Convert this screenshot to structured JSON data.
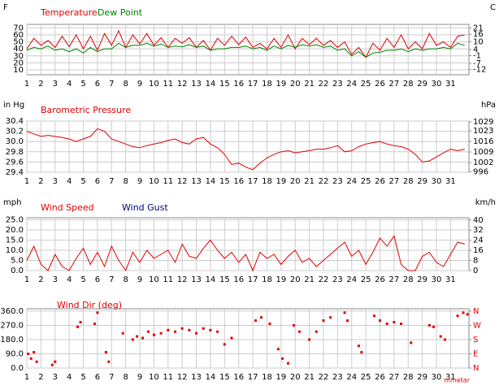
{
  "chart_data": [
    {
      "type": "line",
      "ylabel": "F",
      "y2label": "C",
      "x": [
        1,
        1.5,
        2,
        2.5,
        3,
        3.5,
        4,
        4.5,
        5,
        5.5,
        6,
        6.5,
        7,
        7.5,
        8,
        8.5,
        9,
        9.5,
        10,
        10.5,
        11,
        11.5,
        12,
        12.5,
        13,
        13.5,
        14,
        14.5,
        15,
        15.5,
        16,
        16.5,
        17,
        17.5,
        18,
        18.5,
        19,
        19.5,
        20,
        20.5,
        21,
        21.5,
        22,
        22.5,
        23,
        23.5,
        24,
        24.5,
        25,
        25.5,
        26,
        26.5,
        27,
        27.5,
        28,
        28.5,
        29,
        29.5,
        30,
        30.5,
        31,
        31.5,
        32
      ],
      "xlim": [
        1,
        32.3
      ],
      "xticks": [
        1,
        2,
        3,
        4,
        5,
        6,
        7,
        8,
        9,
        10,
        11,
        12,
        13,
        14,
        15,
        16,
        17,
        18,
        19,
        20,
        21,
        22,
        23,
        24,
        25,
        26,
        27,
        28,
        29,
        30,
        31
      ],
      "ylim": [
        3,
        75
      ],
      "yticks": [
        70,
        60,
        50,
        40,
        30,
        20,
        10
      ],
      "y2lim": [
        -16.1,
        23.9
      ],
      "y2ticks": [
        21,
        16,
        10,
        4,
        -1,
        -7,
        -12
      ],
      "grid": true,
      "series": [
        {
          "name": "Temperature",
          "color": "#e00000",
          "values": [
            40,
            55,
            45,
            52,
            42,
            58,
            43,
            60,
            40,
            58,
            38,
            62,
            45,
            66,
            42,
            60,
            47,
            62,
            45,
            56,
            42,
            55,
            48,
            56,
            42,
            52,
            38,
            55,
            45,
            58,
            46,
            57,
            42,
            48,
            40,
            55,
            42,
            60,
            40,
            55,
            46,
            55,
            45,
            52,
            42,
            50,
            32,
            42,
            28,
            48,
            38,
            55,
            42,
            60,
            40,
            50,
            40,
            62,
            45,
            50,
            42,
            58,
            60
          ]
        },
        {
          "name": "Dew Point",
          "color": "#008000",
          "values": [
            38,
            42,
            40,
            44,
            38,
            40,
            36,
            40,
            34,
            42,
            36,
            40,
            40,
            48,
            42,
            45,
            45,
            48,
            44,
            47,
            42,
            44,
            43,
            46,
            42,
            44,
            38,
            40,
            40,
            42,
            42,
            44,
            40,
            42,
            38,
            44,
            40,
            45,
            42,
            46,
            44,
            46,
            42,
            44,
            38,
            40,
            30,
            36,
            28,
            34,
            35,
            38,
            38,
            40,
            36,
            40,
            38,
            40,
            40,
            42,
            40,
            48,
            45
          ]
        }
      ]
    },
    {
      "type": "line",
      "ylabel": "in Hg",
      "y2label": "hPa",
      "x": [
        1,
        1.5,
        2,
        2.5,
        3,
        3.5,
        4,
        4.5,
        5,
        5.5,
        6,
        6.5,
        7,
        7.5,
        8,
        8.5,
        9,
        9.5,
        10,
        10.5,
        11,
        11.5,
        12,
        12.5,
        13,
        13.5,
        14,
        14.5,
        15,
        15.5,
        16,
        16.5,
        17,
        17.5,
        18,
        18.5,
        19,
        19.5,
        20,
        20.5,
        21,
        21.5,
        22,
        22.5,
        23,
        23.5,
        24,
        24.5,
        25,
        25.5,
        26,
        26.5,
        27,
        27.5,
        28,
        28.5,
        29,
        29.5,
        30,
        30.5,
        31,
        31.5,
        32
      ],
      "xlim": [
        1,
        32.3
      ],
      "xticks": [
        1,
        2,
        3,
        4,
        5,
        6,
        7,
        8,
        9,
        10,
        11,
        12,
        13,
        14,
        15,
        16,
        17,
        18,
        19,
        20,
        21,
        22,
        23,
        24,
        25,
        26,
        27,
        28,
        29,
        30,
        31
      ],
      "ylim": [
        29.4,
        30.4
      ],
      "yticks": [
        30.4,
        30.2,
        {
          "value": 30,
          "label": "30.0"
        },
        29.8,
        29.6,
        29.4
      ],
      "y2lim": [
        995.6,
        1029.5
      ],
      "y2ticks": [
        1029,
        1023,
        1016,
        1009,
        1002,
        996
      ],
      "grid": true,
      "series": [
        {
          "name": "Barometric Pressure",
          "color": "#e00000",
          "values": [
            30.2,
            30.15,
            30.1,
            30.12,
            30.1,
            30.08,
            30.05,
            30.0,
            30.05,
            30.1,
            30.25,
            30.2,
            30.05,
            30.0,
            29.95,
            29.9,
            29.88,
            29.92,
            29.95,
            29.98,
            30.02,
            30.05,
            29.98,
            29.95,
            30.05,
            30.08,
            29.95,
            29.88,
            29.75,
            29.55,
            29.58,
            29.5,
            29.45,
            29.58,
            29.68,
            29.75,
            29.8,
            29.82,
            29.78,
            29.8,
            29.82,
            29.85,
            29.85,
            29.88,
            29.92,
            29.8,
            29.82,
            29.9,
            29.95,
            29.98,
            30.0,
            29.95,
            29.92,
            29.9,
            29.85,
            29.75,
            29.6,
            29.62,
            29.7,
            29.78,
            29.85,
            29.82,
            29.85
          ]
        }
      ]
    },
    {
      "type": "line",
      "ylabel": "mph",
      "y2label": "km/h",
      "x": [
        1,
        1.5,
        2,
        2.5,
        3,
        3.5,
        4,
        4.5,
        5,
        5.5,
        6,
        6.5,
        7,
        7.5,
        8,
        8.5,
        9,
        9.5,
        10,
        10.5,
        11,
        11.5,
        12,
        12.5,
        13,
        13.5,
        14,
        14.5,
        15,
        15.5,
        16,
        16.5,
        17,
        17.5,
        18,
        18.5,
        19,
        19.5,
        20,
        20.5,
        21,
        21.5,
        22,
        22.5,
        23,
        23.5,
        24,
        24.5,
        25,
        25.5,
        26,
        26.5,
        27,
        27.5,
        28,
        28.5,
        29,
        29.5,
        30,
        30.5,
        31,
        31.5,
        32
      ],
      "xlim": [
        1,
        32.3
      ],
      "xticks": [
        1,
        2,
        3,
        4,
        5,
        6,
        7,
        8,
        9,
        10,
        11,
        12,
        13,
        14,
        15,
        16,
        17,
        18,
        19,
        20,
        21,
        22,
        23,
        24,
        25,
        26,
        27,
        28,
        29,
        30,
        31
      ],
      "ylim": [
        0,
        26
      ],
      "yticks": [
        {
          "value": 25,
          "label": "25.0"
        },
        {
          "value": 20,
          "label": "20.0"
        },
        {
          "value": 15,
          "label": "15.0"
        },
        {
          "value": 10,
          "label": "10.0"
        },
        {
          "value": 5,
          "label": "5.0"
        },
        {
          "value": 0,
          "label": "0.0"
        }
      ],
      "y2lim": [
        0,
        41.8
      ],
      "y2ticks": [
        40,
        32,
        24,
        16,
        8,
        0
      ],
      "grid": true,
      "series": [
        {
          "name": "Wind Speed",
          "color": "#e00000",
          "values": [
            5,
            12,
            3,
            0,
            8,
            2,
            0,
            6,
            11,
            3,
            9,
            2,
            12,
            5,
            0,
            9,
            4,
            10,
            6,
            8,
            10,
            4,
            13,
            7,
            6,
            11,
            15,
            10,
            6,
            9,
            4,
            8,
            0,
            9,
            6,
            8,
            3,
            7,
            10,
            4,
            6,
            2,
            5,
            8,
            11,
            14,
            7,
            10,
            3,
            9,
            16,
            12,
            17,
            3,
            0,
            0,
            7,
            9,
            4,
            2,
            8,
            14,
            13
          ]
        },
        {
          "name": "Wind Gust",
          "color": "#000080",
          "values": [
            null,
            null,
            null,
            null,
            null,
            null,
            null,
            null,
            null,
            null,
            null,
            null,
            null,
            null,
            null,
            null,
            null,
            null,
            null,
            null,
            null,
            null,
            null,
            null,
            null,
            null,
            null,
            null,
            null,
            null,
            null,
            null,
            null,
            null,
            null,
            null,
            null,
            null,
            null,
            null,
            null,
            null,
            null,
            null,
            null,
            null,
            null,
            null,
            null,
            null,
            null,
            null,
            null,
            null,
            null,
            null,
            null,
            null,
            null,
            null,
            null,
            null,
            null
          ]
        }
      ]
    },
    {
      "type": "scatter",
      "footer": "mmetar",
      "x": [
        1.1,
        1.3,
        1.5,
        1.7,
        2.8,
        3,
        4.6,
        4.8,
        5.8,
        6,
        6.6,
        6.8,
        7.8,
        8.5,
        8.8,
        9.2,
        9.6,
        10,
        10.5,
        11,
        11.5,
        12,
        12.5,
        13,
        13.5,
        14,
        14.5,
        15,
        15.5,
        17.2,
        17.6,
        18.2,
        18.8,
        19.1,
        19.5,
        19.9,
        20.3,
        21,
        21.5,
        22,
        22.5,
        23.5,
        23.7,
        24.5,
        24.7,
        25.6,
        26,
        26.5,
        27,
        27.5,
        28.2,
        29.5,
        29.8,
        30.3,
        30.6,
        31.5,
        31.9,
        32.2
      ],
      "xlim": [
        1,
        32.3
      ],
      "xticks": [
        1,
        2,
        3,
        4,
        5,
        6,
        7,
        8,
        9,
        10,
        11,
        12,
        13,
        14,
        15,
        16,
        17,
        18,
        19,
        20,
        21,
        22,
        23,
        24,
        25,
        26,
        27,
        28,
        29,
        30,
        31
      ],
      "ylim": [
        0,
        375
      ],
      "yticks": [
        {
          "value": 360,
          "label": "360.0"
        },
        {
          "value": 270,
          "label": "270.0"
        },
        {
          "value": 180,
          "label": "180.0"
        },
        {
          "value": 90,
          "label": "90.0"
        },
        {
          "value": 0,
          "label": "0.0"
        }
      ],
      "y2lim": [
        0,
        375
      ],
      "y2ticks": [
        {
          "value": 360,
          "label": "N"
        },
        {
          "value": 270,
          "label": "W"
        },
        {
          "value": 180,
          "label": "S"
        },
        {
          "value": 90,
          "label": "E"
        },
        {
          "value": 0,
          "label": "N"
        }
      ],
      "grid": true,
      "series": [
        {
          "name": "Wind Dir (deg)",
          "color": "#e00000",
          "values": [
            90,
            60,
            100,
            40,
            20,
            40,
            260,
            290,
            280,
            350,
            100,
            40,
            220,
            180,
            200,
            190,
            230,
            210,
            220,
            240,
            230,
            250,
            240,
            220,
            250,
            240,
            230,
            150,
            190,
            300,
            320,
            280,
            120,
            60,
            30,
            270,
            230,
            180,
            230,
            300,
            320,
            350,
            300,
            140,
            100,
            330,
            300,
            280,
            290,
            280,
            160,
            270,
            260,
            200,
            180,
            330,
            350,
            340
          ]
        }
      ]
    }
  ]
}
